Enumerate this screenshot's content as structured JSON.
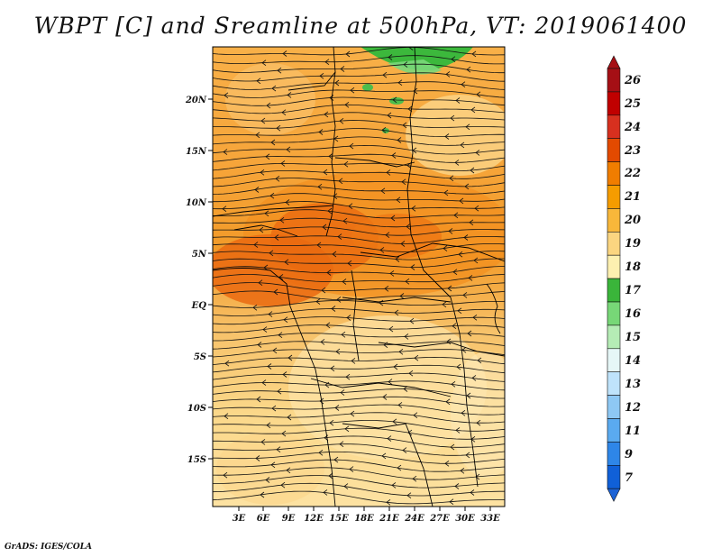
{
  "title": "WBPT [C] and Sreamline at 500hPa, VT: 2019061400",
  "credit": "GrADS: IGES/COLA",
  "lat_ticks": [
    "20N",
    "15N",
    "10N",
    "5N",
    "EQ",
    "5S",
    "10S",
    "15S"
  ],
  "lon_ticks": [
    "3E",
    "6E",
    "9E",
    "12E",
    "15E",
    "18E",
    "21E",
    "24E",
    "27E",
    "30E",
    "33E"
  ],
  "colorbar": {
    "labels": [
      "26",
      "25",
      "24",
      "23",
      "22",
      "21",
      "20",
      "19",
      "18",
      "17",
      "16",
      "15",
      "14",
      "13",
      "12",
      "11",
      "9",
      "7"
    ],
    "colors": [
      "#a50f15",
      "#c00000",
      "#d7301f",
      "#e34a00",
      "#f07d00",
      "#f59c00",
      "#f8b73a",
      "#fbd580",
      "#fdf0b0",
      "#3ab53a",
      "#77d777",
      "#b5ecb5",
      "#e6f7f7",
      "#bfe3fb",
      "#8ec8f4",
      "#5aaaf0",
      "#2e86e8",
      "#1060d8"
    ],
    "top_arrow_color": "#a50f15",
    "bottom_arrow_color": "#1c63d6"
  }
}
